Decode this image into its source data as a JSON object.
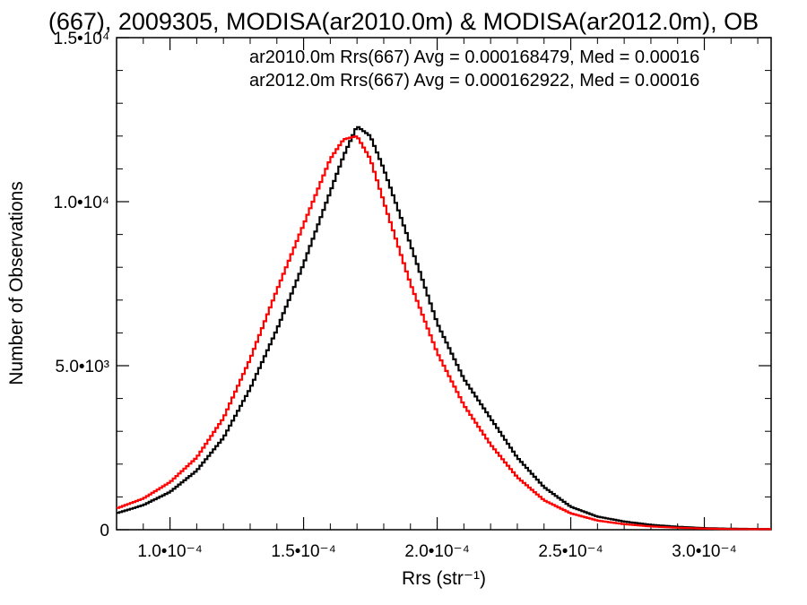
{
  "chart_data": {
    "type": "line",
    "title": "(667), 2009305, MODISA(ar2010.0m) & MODISA(ar2012.0m), OB",
    "xlabel": "Rrs (str⁻¹)",
    "ylabel": "Number of Observations",
    "xlim": [
      8e-05,
      0.000325
    ],
    "ylim": [
      0,
      15000
    ],
    "x_ticks": [
      {
        "value": 0.0001,
        "label": "1.0•10⁻⁴"
      },
      {
        "value": 0.00015,
        "label": "1.5•10⁻⁴"
      },
      {
        "value": 0.0002,
        "label": "2.0•10⁻⁴"
      },
      {
        "value": 0.00025,
        "label": "2.5•10⁻⁴"
      },
      {
        "value": 0.0003,
        "label": "3.0•10⁻⁴"
      }
    ],
    "y_ticks": [
      {
        "value": 0,
        "label": "0"
      },
      {
        "value": 5000,
        "label": "5.0•10³"
      },
      {
        "value": 10000,
        "label": "1.0•10⁴"
      },
      {
        "value": 15000,
        "label": "1.5•10⁴"
      }
    ],
    "grid": false,
    "legend_position": "top-right",
    "series": [
      {
        "name": "ar2010.0m Rrs(667) Avg = 0.000168479, Med = 0.00016",
        "color": "#000000",
        "x": [
          8e-05,
          9e-05,
          0.0001,
          0.00011,
          0.00012,
          0.00013,
          0.00014,
          0.00015,
          0.00016,
          0.000165,
          0.00017,
          0.000175,
          0.00018,
          0.00019,
          0.0002,
          0.00021,
          0.00022,
          0.00023,
          0.00024,
          0.00025,
          0.00026,
          0.00027,
          0.00028,
          0.00029,
          0.0003,
          0.00031,
          0.000325
        ],
        "y": [
          500,
          750,
          1150,
          1800,
          2800,
          4300,
          6100,
          8100,
          10300,
          11400,
          12300,
          12000,
          11000,
          8700,
          6300,
          4600,
          3400,
          2200,
          1300,
          700,
          400,
          250,
          150,
          90,
          50,
          30,
          20
        ]
      },
      {
        "name": "ar2012.0m Rrs(667) Avg = 0.000162922, Med = 0.00016",
        "color": "#ff0000",
        "x": [
          8e-05,
          9e-05,
          0.0001,
          0.00011,
          0.00012,
          0.00013,
          0.00014,
          0.00015,
          0.00016,
          0.000165,
          0.00017,
          0.000175,
          0.00018,
          0.00019,
          0.0002,
          0.00021,
          0.00022,
          0.00023,
          0.00024,
          0.00025,
          0.00026,
          0.00027,
          0.00028,
          0.00029,
          0.0003,
          0.00031,
          0.000325
        ],
        "y": [
          650,
          950,
          1450,
          2200,
          3400,
          5200,
          7300,
          9300,
          11300,
          11900,
          12000,
          11300,
          10000,
          7500,
          5400,
          3800,
          2600,
          1600,
          900,
          500,
          280,
          170,
          100,
          60,
          35,
          20,
          15
        ]
      }
    ]
  }
}
